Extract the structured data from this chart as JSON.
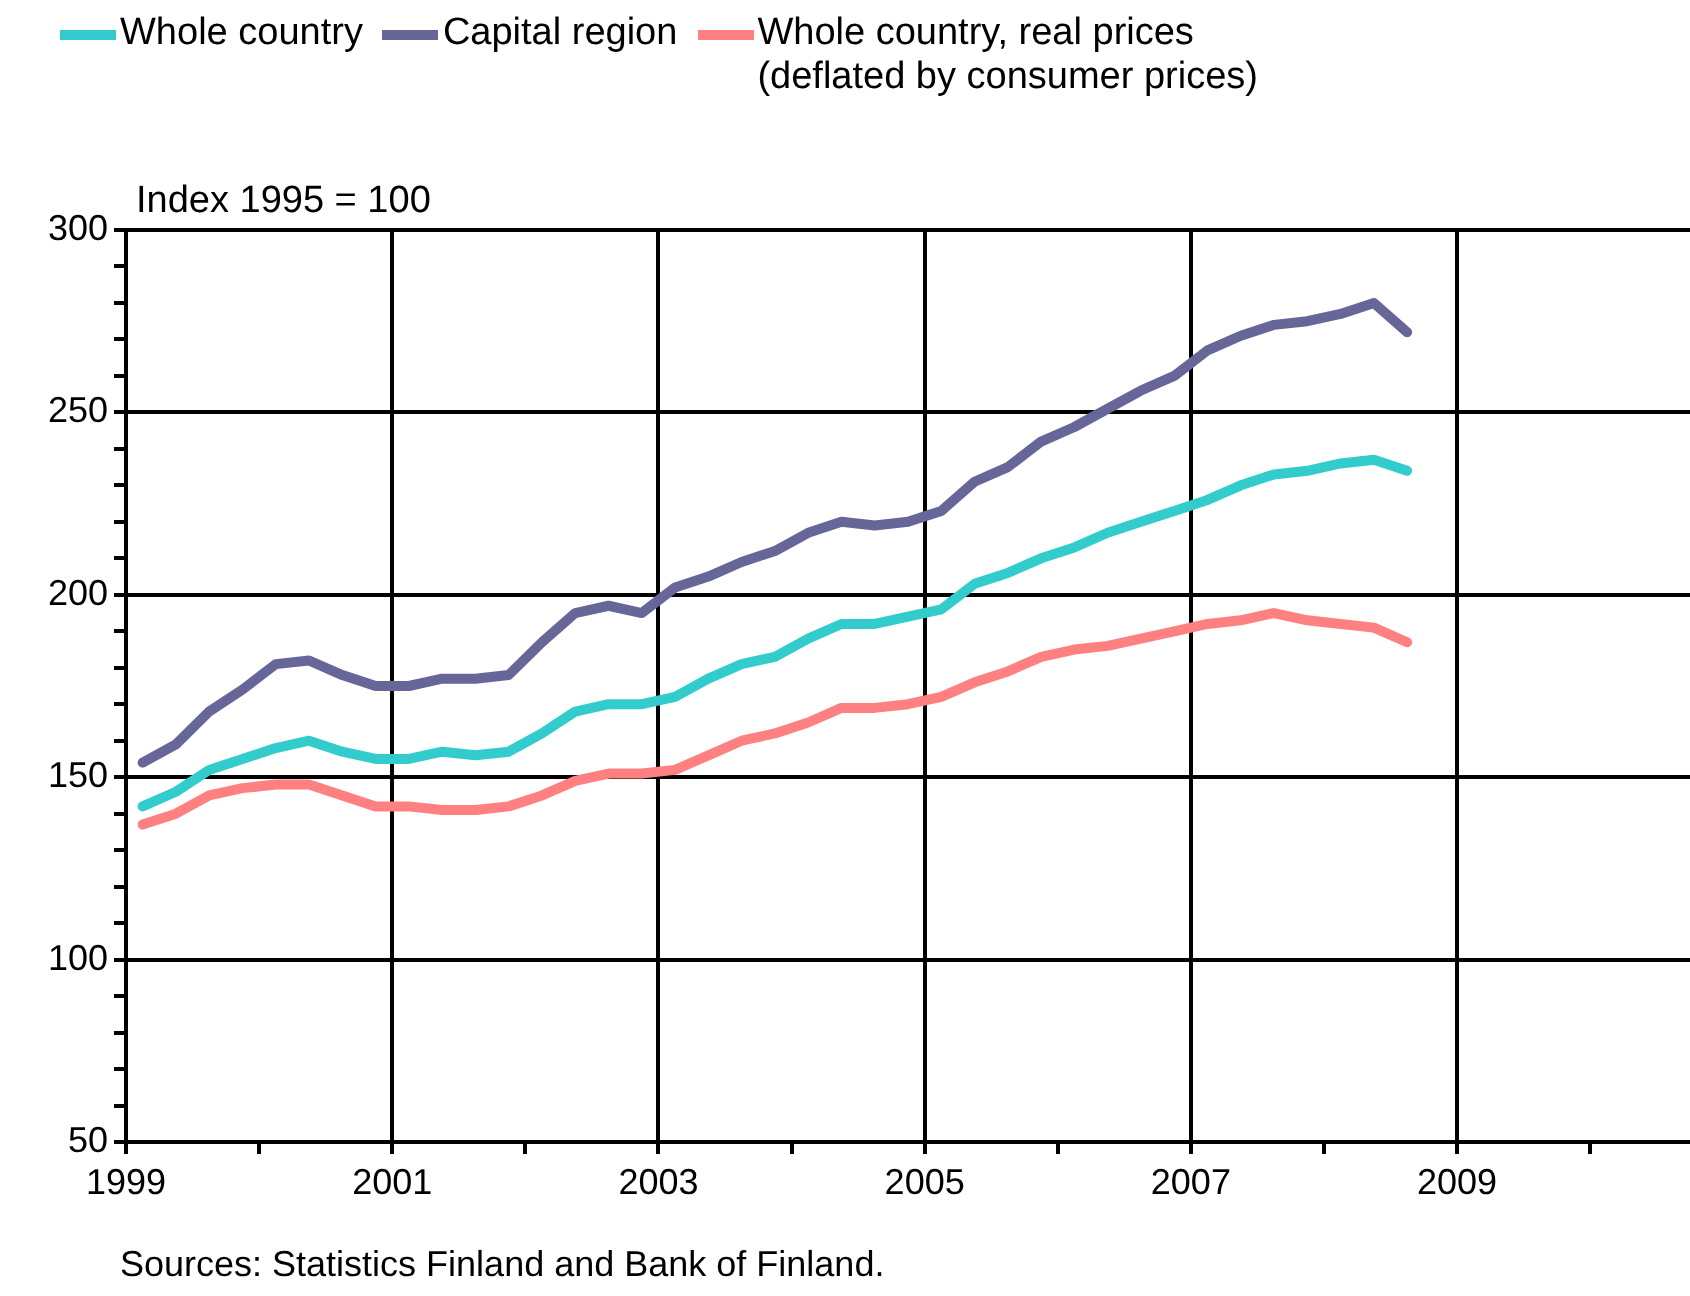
{
  "chart_data": {
    "type": "line",
    "ylabel": "Index 1995 = 100",
    "annotations": [
      "Sources: Statistics Finland and Bank of Finland."
    ],
    "x": [
      1999.125,
      1999.375,
      1999.625,
      1999.875,
      2000.125,
      2000.375,
      2000.625,
      2000.875,
      2001.125,
      2001.375,
      2001.625,
      2001.875,
      2002.125,
      2002.375,
      2002.625,
      2002.875,
      2003.125,
      2003.375,
      2003.625,
      2003.875,
      2004.125,
      2004.375,
      2004.625,
      2004.875,
      2005.125,
      2005.375,
      2005.625,
      2005.875,
      2006.125,
      2006.375,
      2006.625,
      2006.875,
      2007.125,
      2007.375,
      2007.625,
      2007.875,
      2008.125,
      2008.375,
      2008.625
    ],
    "series": [
      {
        "name": "Whole country",
        "color": "#33cccc",
        "values": [
          142,
          146,
          152,
          155,
          158,
          160,
          157,
          155,
          155,
          157,
          156,
          157,
          162,
          168,
          170,
          170,
          172,
          177,
          181,
          183,
          188,
          192,
          192,
          194,
          196,
          203,
          206,
          210,
          213,
          217,
          220,
          223,
          226,
          230,
          233,
          234,
          236,
          237,
          234
        ]
      },
      {
        "name": "Capital region",
        "color": "#666699",
        "values": [
          154,
          159,
          168,
          174,
          181,
          182,
          178,
          175,
          175,
          177,
          177,
          178,
          187,
          195,
          197,
          195,
          202,
          205,
          209,
          212,
          217,
          220,
          219,
          220,
          223,
          231,
          235,
          242,
          246,
          251,
          256,
          260,
          267,
          271,
          274,
          275,
          277,
          280,
          272
        ]
      },
      {
        "name": "Whole country, real prices (deflated by consumer prices)",
        "color": "#ff8080",
        "values": [
          137,
          140,
          145,
          147,
          148,
          148,
          145,
          142,
          142,
          141,
          141,
          142,
          145,
          149,
          151,
          151,
          152,
          156,
          160,
          162,
          165,
          169,
          169,
          170,
          172,
          176,
          179,
          183,
          185,
          186,
          188,
          190,
          192,
          193,
          195,
          193,
          192,
          191,
          187
        ]
      }
    ],
    "xlim": [
      1999,
      2010.75
    ],
    "xticks": [
      1999,
      {
        "value": 2000,
        "label": null
      },
      2001,
      {
        "value": 2002,
        "label": null
      },
      2003,
      {
        "value": 2004,
        "label": null
      },
      2005,
      {
        "value": 2006,
        "label": null
      },
      2007,
      {
        "value": 2008,
        "label": null
      },
      2009,
      {
        "value": 2010,
        "label": null
      }
    ],
    "ylim": [
      50,
      300
    ],
    "yticks": [
      50,
      {
        "value": 60,
        "label": null
      },
      {
        "value": 70,
        "label": null
      },
      {
        "value": 80,
        "label": null
      },
      {
        "value": 90,
        "label": null
      },
      100,
      {
        "value": 110,
        "label": null
      },
      {
        "value": 120,
        "label": null
      },
      {
        "value": 130,
        "label": null
      },
      {
        "value": 140,
        "label": null
      },
      150,
      {
        "value": 160,
        "label": null
      },
      {
        "value": 170,
        "label": null
      },
      {
        "value": 180,
        "label": null
      },
      {
        "value": 190,
        "label": null
      },
      200,
      {
        "value": 210,
        "label": null
      },
      {
        "value": 220,
        "label": null
      },
      {
        "value": 230,
        "label": null
      },
      {
        "value": 240,
        "label": null
      },
      250,
      {
        "value": 260,
        "label": null
      },
      {
        "value": 270,
        "label": null
      },
      {
        "value": 280,
        "label": null
      },
      {
        "value": 290,
        "label": null
      },
      300
    ],
    "grid": true,
    "legend": "top",
    "marker": "none",
    "line_style": "solid"
  }
}
